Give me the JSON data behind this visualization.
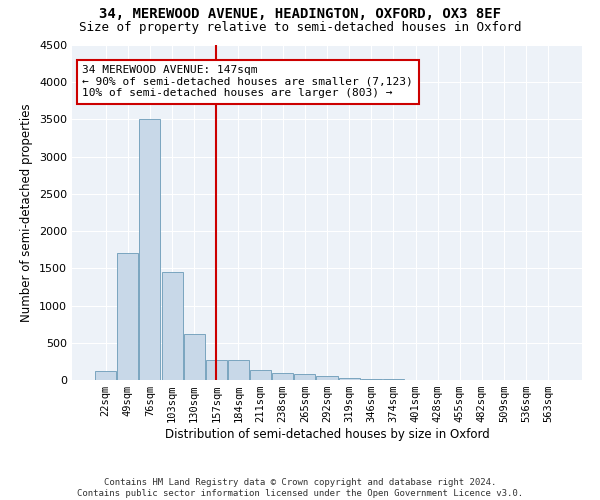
{
  "title_line1": "34, MEREWOOD AVENUE, HEADINGTON, OXFORD, OX3 8EF",
  "title_line2": "Size of property relative to semi-detached houses in Oxford",
  "xlabel": "Distribution of semi-detached houses by size in Oxford",
  "ylabel": "Number of semi-detached properties",
  "footer_line1": "Contains HM Land Registry data © Crown copyright and database right 2024.",
  "footer_line2": "Contains public sector information licensed under the Open Government Licence v3.0.",
  "annotation_line1": "34 MEREWOOD AVENUE: 147sqm",
  "annotation_line2": "← 90% of semi-detached houses are smaller (7,123)",
  "annotation_line3": "10% of semi-detached houses are larger (803) →",
  "bar_color": "#c8d8e8",
  "bar_edge_color": "#6a9ab8",
  "vline_color": "#cc0000",
  "annotation_box_edge_color": "#cc0000",
  "annotation_box_face_color": "white",
  "plot_bg_color": "#edf2f8",
  "categories": [
    "22sqm",
    "49sqm",
    "76sqm",
    "103sqm",
    "130sqm",
    "157sqm",
    "184sqm",
    "211sqm",
    "238sqm",
    "265sqm",
    "292sqm",
    "319sqm",
    "346sqm",
    "374sqm",
    "401sqm",
    "428sqm",
    "455sqm",
    "482sqm",
    "509sqm",
    "536sqm",
    "563sqm"
  ],
  "values": [
    120,
    1700,
    3500,
    1450,
    620,
    270,
    270,
    140,
    90,
    75,
    55,
    30,
    20,
    15,
    0,
    0,
    0,
    0,
    0,
    0,
    0
  ],
  "ylim": [
    0,
    4500
  ],
  "yticks": [
    0,
    500,
    1000,
    1500,
    2000,
    2500,
    3000,
    3500,
    4000,
    4500
  ],
  "vline_bar_index": 5
}
